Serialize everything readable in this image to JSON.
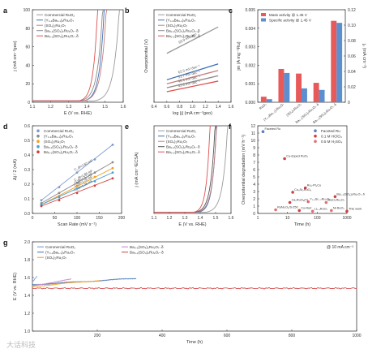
{
  "figure": {
    "watermark": "大话科技"
  },
  "chart_data": [
    {
      "panel": "a",
      "type": "line",
      "xlabel": "E (V vs. RHE)",
      "ylabel": "j (mA cm⁻²geo)",
      "xlim": [
        1.1,
        1.6
      ],
      "ylim": [
        0,
        100
      ],
      "xticks": [
        "1.1",
        "1.2",
        "1.3",
        "1.4",
        "1.5",
        "1.6"
      ],
      "yticks": [
        "0",
        "20",
        "40",
        "60",
        "80",
        "100"
      ],
      "legend": "top-left",
      "series": [
        {
          "name": "Commercial RuO₂",
          "color": "#9a9a9a",
          "onset": 1.44,
          "scale": 0.12
        },
        {
          "name": "(Y₀.₉Ba₀.₁)₂Ru₂O₇",
          "color": "#3d6fb4",
          "onset": 1.38,
          "scale": 0.1
        },
        {
          "name": "(SO₄)₂Ru₂O₇",
          "color": "#c77d7d",
          "onset": 1.38,
          "scale": 0.11
        },
        {
          "name": "Ba₀.₁(SO₄)₂Ru₂O₇₋δ",
          "color": "#8a8a8a",
          "onset": 1.36,
          "scale": 0.11
        },
        {
          "name": "Ba₀.₂(SO₄)₂Ru₂O₇₋δ",
          "color": "#e05050",
          "onset": 1.355,
          "scale": 0.09
        }
      ]
    },
    {
      "panel": "b",
      "type": "line",
      "xlabel": "log |j| (mA cm⁻²geo)",
      "ylabel": "Overpotential (V)",
      "xlim": [
        0.4,
        1.6
      ],
      "xticks": [
        "0.4",
        "0.6",
        "0.8",
        "1.0",
        "1.2",
        "1.4",
        "1.6"
      ],
      "legend": "top-left",
      "series": [
        {
          "name": "Commercial RuO₂",
          "color": "#9a9a9a",
          "x": [
            0.6,
            1.4
          ],
          "y": [
            0.62,
            0.82
          ],
          "label": "93.9 mV dec⁻¹"
        },
        {
          "name": "(Y₀.₉Ba₀.₁)₂Ru₂O₇",
          "color": "#3d6fb4",
          "x": [
            0.6,
            1.4
          ],
          "y": [
            0.42,
            0.54
          ],
          "label": "62.5 mV dec⁻¹"
        },
        {
          "name": "(SO₄)₂Ru₂O₇",
          "color": "#c77d7d",
          "x": [
            0.6,
            1.4
          ],
          "y": [
            0.39,
            0.49
          ],
          "label": "51.7 mV dec⁻¹"
        },
        {
          "name": "Ba₀.₁(SO₄)₂Ru₂O₇₋δ",
          "color": "#8a8a8a",
          "x": [
            0.6,
            1.4
          ],
          "y": [
            0.36,
            0.45
          ],
          "label": "49.4 mV dec⁻¹"
        },
        {
          "name": "Ba₀.₂(SO₄)₂Ru₂O₇₋δ",
          "color": "#e05050",
          "x": [
            0.6,
            1.4
          ],
          "y": [
            0.33,
            0.41
          ],
          "label": "43.6 mV dec⁻¹"
        }
      ]
    },
    {
      "panel": "c",
      "type": "bar",
      "ylabel": "jm (A mg⁻¹Ru)",
      "y2label": "jₛ (mA cm⁻²)",
      "ylim": [
        0,
        0.005
      ],
      "y2lim": [
        0,
        0.12
      ],
      "yticks": [
        "0.000",
        "0.001",
        "0.002",
        "0.003",
        "0.004",
        "0.005"
      ],
      "y2ticks": [
        "0",
        "0.02",
        "0.04",
        "0.06",
        "0.08",
        "0.10",
        "0.12"
      ],
      "categories": [
        "RuO₂",
        "(Y₀.₉Ba₀.₁)₂Ru₂O₇",
        "(SO₄)₂Ru₂O₇",
        "Ba₀.₁(SO₄)₂Ru₂O₇₋δ",
        "Ba₀.₂(SO₄)₂Ru₂O₇₋δ"
      ],
      "legend": "top-left",
      "series": [
        {
          "name": "Mass activity @ 1.45 V",
          "color": "#e85a5a",
          "values": [
            0.0003,
            0.0018,
            0.00155,
            0.00105,
            0.0044
          ]
        },
        {
          "name": "Specific activity @ 1.45 V",
          "color": "#5b8fd0",
          "values": [
            0.004,
            0.038,
            0.018,
            0.016,
            0.103
          ]
        }
      ]
    },
    {
      "panel": "d",
      "type": "line",
      "xlabel": "Scan Rate (mV s⁻¹)",
      "ylabel": "Δj / 2 (mA)",
      "xlim": [
        0,
        200
      ],
      "ylim": [
        0,
        0.6
      ],
      "xticks": [
        "0",
        "50",
        "100",
        "150",
        "200"
      ],
      "yticks": [
        "0.0",
        "0.1",
        "0.2",
        "0.3",
        "0.4",
        "0.5",
        "0.6"
      ],
      "legend": "top-left",
      "series": [
        {
          "name": "Commercial RuO₂",
          "color": "#7b9bd1",
          "x": [
            20,
            60,
            100,
            140,
            180
          ],
          "y": [
            0.09,
            0.18,
            0.28,
            0.37,
            0.47
          ],
          "label": "C_dl=2.82 mF"
        },
        {
          "name": "(Y₀.₉Ba₀.₁)₂Ru₂O₇",
          "color": "#8a8a8a",
          "x": [
            20,
            60,
            100,
            140,
            180
          ],
          "y": [
            0.07,
            0.14,
            0.21,
            0.28,
            0.35
          ],
          "label": "C_dl=1.86 mF"
        },
        {
          "name": "(SO₄)₂Ru₂O₇",
          "color": "#f0a020",
          "x": [
            20,
            60,
            100,
            140,
            180
          ],
          "y": [
            0.06,
            0.12,
            0.19,
            0.25,
            0.31
          ],
          "label": "C_dl=1.57 mF"
        },
        {
          "name": "Ba₀.₁(SO₄)₂Ru₂O₇₋δ",
          "color": "#4aa0d8",
          "x": [
            20,
            60,
            100,
            140,
            180
          ],
          "y": [
            0.06,
            0.11,
            0.17,
            0.22,
            0.28
          ],
          "label": "C_dl=1.25 mF"
        },
        {
          "name": "Ba₀.₂(SO₄)₂Ru₂O₇₋δ",
          "color": "#d04040",
          "x": [
            20,
            60,
            100,
            140,
            180
          ],
          "y": [
            0.05,
            0.09,
            0.14,
            0.19,
            0.24
          ],
          "label": "C_dl=1.26 mF"
        }
      ]
    },
    {
      "panel": "e",
      "type": "line",
      "xlabel": "E (V vs. RHE)",
      "ylabel": "j (mA cm⁻²ECSA)",
      "xlim": [
        1.1,
        1.6
      ],
      "xticks": [
        "1.1",
        "1.2",
        "1.3",
        "1.4",
        "1.5",
        "1.6"
      ],
      "legend": "top-left",
      "series": [
        {
          "name": "Commercial RuO₂",
          "color": "#9a9a9a",
          "onset": 1.44,
          "scale": 0.12
        },
        {
          "name": "(Y₀.₉Ba₀.₁)₂Ru₂O₇",
          "color": "#3d6fb4",
          "onset": 1.39,
          "scale": 0.1
        },
        {
          "name": "(SO₄)₂Ru₂O₇",
          "color": "#c77d7d",
          "onset": 1.38,
          "scale": 0.11
        },
        {
          "name": "Ba₀.₁(SO₄)₂Ru₂O₇₋δ",
          "color": "#555555",
          "onset": 1.37,
          "scale": 0.11
        },
        {
          "name": "Ba₀.₂(SO₄)₂Ru₂O₇₋δ",
          "color": "#e05050",
          "onset": 1.36,
          "scale": 0.09
        }
      ]
    },
    {
      "panel": "f",
      "type": "scatter",
      "xlabel": "Time (h)",
      "ylabel": "Overpotential degradation (mV h⁻¹)",
      "xscale": "log",
      "xticks": [
        "1",
        "10",
        "100",
        "1000"
      ],
      "yticks": [
        "0",
        "1",
        "2",
        "3",
        "4",
        "5",
        "6",
        "7",
        "8",
        "9",
        "10",
        "11",
        "12"
      ],
      "legend": "top-right",
      "series": [
        {
          "name": "Faceted Ru",
          "color": "#5b7fc0"
        },
        {
          "name": "0.1 M HClO₄",
          "color": "#d04040"
        },
        {
          "name": "0.5 M H₂SO₄",
          "color": "#e07070"
        }
      ],
      "points": [
        {
          "label": "Faceted Ru",
          "x": 1.5,
          "y": 11.2,
          "s": 0
        },
        {
          "label": "Cu-doped RuO₂",
          "x": 8,
          "y": 7.5,
          "s": 1
        },
        {
          "label": "Ru₁-Pt₃Cu",
          "x": 40,
          "y": 3.5,
          "s": 1
        },
        {
          "label": "Co₃Sr₂RuO₆",
          "x": 15,
          "y": 2.9,
          "s": 1
        },
        {
          "label": "Y₁.₈Sr₀.₂Ru₂O₇",
          "x": 50,
          "y": 1.6,
          "s": 2
        },
        {
          "label": "Ba₀.₂(SO₄)₂Ru₂O₇₋δ",
          "x": 400,
          "y": 2.3,
          "s": 1
        },
        {
          "label": "Bi₂Er₂Ru₂O₇",
          "x": 200,
          "y": 1.5,
          "s": 2
        },
        {
          "label": "Ca₂RuO₄(T)",
          "x": 12,
          "y": 1.5,
          "s": 1
        },
        {
          "label": "RuNi₂O₆/S-250",
          "x": 4,
          "y": 0.5,
          "s": 2
        },
        {
          "label": "Co-RuIr",
          "x": 25,
          "y": 0.4,
          "s": 1
        },
        {
          "label": "Li₀.₅RuO₂",
          "x": 70,
          "y": 0.3,
          "s": 2
        },
        {
          "label": "Ni-RuO₂",
          "x": 300,
          "y": 0.4,
          "s": 2
        },
        {
          "label": "This work",
          "x": 1000,
          "y": 0.3,
          "s": 1
        }
      ]
    },
    {
      "panel": "g",
      "type": "line",
      "xlabel": "Time (h)",
      "ylabel": "E (V vs. RHE)",
      "xlim": [
        0,
        1000
      ],
      "ylim": [
        1.0,
        2.0
      ],
      "xticks": [
        "200",
        "400",
        "600",
        "800",
        "1000"
      ],
      "yticks": [
        "1.0",
        "1.2",
        "1.4",
        "1.6",
        "1.8",
        "2.0"
      ],
      "annotation": "@ 10 mA cm⁻²",
      "legend": "top-left",
      "series": [
        {
          "name": "Commercial RuO₂",
          "color": "#6a8fd0",
          "end": 15,
          "level": 1.55
        },
        {
          "name": "(Y₀.₉Ba₀.₁)₂Ru₂O₇",
          "color": "#3d6fb4",
          "end": 320,
          "level": 1.52
        },
        {
          "name": "(SO₄)₂Ru₂O₇",
          "color": "#f0a020",
          "end": 210,
          "level": 1.5
        },
        {
          "name": "Ba₀.₁(SO₄)₂Ru₂O₇₋δ",
          "color": "#c77dc7",
          "end": 120,
          "level": 1.51
        },
        {
          "name": "Ba₀.₂(SO₄)₂Ru₂O₇₋δ",
          "color": "#d04040",
          "end": 1000,
          "level": 1.48
        }
      ]
    }
  ]
}
